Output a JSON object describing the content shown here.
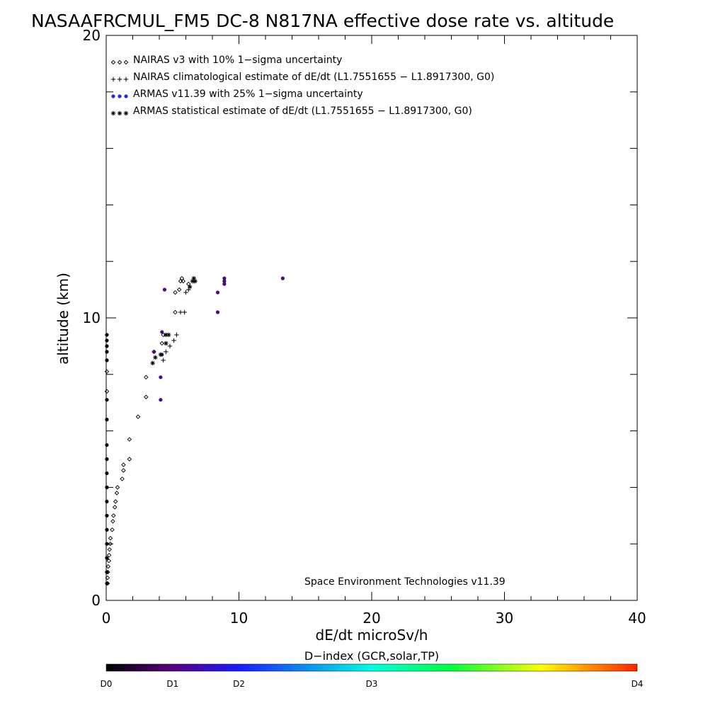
{
  "chart_data": {
    "type": "scatter",
    "title": "NASAAFRCMUL_FM5 DC-8   N817NA effective dose rate vs. altitude",
    "xlabel": "dE/dt microSv/h",
    "ylabel": "altitude (km)",
    "xlim": [
      0,
      40
    ],
    "ylim": [
      0,
      20
    ],
    "x_ticks": [
      0,
      10,
      20,
      30,
      40
    ],
    "x_tick_labels": [
      "0",
      "10",
      "20",
      "30",
      "40"
    ],
    "y_ticks": [
      0,
      10,
      20
    ],
    "y_tick_labels": [
      "0",
      "10",
      "20"
    ],
    "grid": false,
    "legend_position": "top-left",
    "annotation": "Space Environment Technologies v11.39",
    "colorbar": {
      "title": "D−index (GCR,solar,TP)",
      "labels": [
        "D0",
        "D1",
        "D2",
        "D3",
        "D4"
      ],
      "label_values": [
        0,
        0.125,
        0.25,
        0.5,
        1.0
      ]
    },
    "series": [
      {
        "name": "NAIRAS v3 with 10% 1−sigma uncertainty",
        "marker": "diamond",
        "color": "#000000",
        "points": [
          [
            0.05,
            7.4
          ],
          [
            0.05,
            8.1
          ],
          [
            0.1,
            0.6
          ],
          [
            0.1,
            0.8
          ],
          [
            0.12,
            1.0
          ],
          [
            0.15,
            1.2
          ],
          [
            0.2,
            1.4
          ],
          [
            0.22,
            1.6
          ],
          [
            0.25,
            1.8
          ],
          [
            0.3,
            2.0
          ],
          [
            0.32,
            2.2
          ],
          [
            0.45,
            2.5
          ],
          [
            0.5,
            2.8
          ],
          [
            0.55,
            3.0
          ],
          [
            0.65,
            3.3
          ],
          [
            0.7,
            3.5
          ],
          [
            0.8,
            3.8
          ],
          [
            0.85,
            4.0
          ],
          [
            1.2,
            4.3
          ],
          [
            1.3,
            4.6
          ],
          [
            1.3,
            4.8
          ],
          [
            1.75,
            5.0
          ],
          [
            1.75,
            5.7
          ],
          [
            2.4,
            6.5
          ],
          [
            3.0,
            7.2
          ],
          [
            3.0,
            7.9
          ],
          [
            3.6,
            8.8
          ],
          [
            4.2,
            9.1
          ],
          [
            4.3,
            9.4
          ],
          [
            5.2,
            10.2
          ],
          [
            5.2,
            10.9
          ],
          [
            5.5,
            11.0
          ],
          [
            5.6,
            11.3
          ],
          [
            5.7,
            11.4
          ],
          [
            5.8,
            11.3
          ],
          [
            6.2,
            11.2
          ]
        ]
      },
      {
        "name": "NAIRAS climatological estimate of dE/dt (L1.7551655 − L1.8917300, G0)",
        "marker": "plus",
        "color": "#000000",
        "points": [
          [
            4.3,
            8.5
          ],
          [
            4.5,
            8.8
          ],
          [
            4.8,
            9.0
          ],
          [
            5.1,
            9.2
          ],
          [
            5.3,
            9.4
          ],
          [
            5.6,
            10.2
          ],
          [
            5.9,
            10.2
          ],
          [
            6.0,
            10.9
          ],
          [
            6.2,
            11.0
          ],
          [
            6.6,
            11.3
          ]
        ]
      },
      {
        "name": "ARMAS v11.39 with 25% 1−sigma uncertainty",
        "marker": "dot",
        "color": "#2a2ad0",
        "points": [
          [
            0.05,
            0.6
          ],
          [
            0.05,
            1.0
          ],
          [
            0.05,
            1.5
          ],
          [
            0.05,
            2.0
          ],
          [
            0.05,
            2.5
          ],
          [
            0.05,
            3.0
          ],
          [
            0.05,
            3.5
          ],
          [
            0.05,
            4.0
          ],
          [
            0.05,
            4.5
          ],
          [
            0.05,
            5.0
          ],
          [
            0.05,
            5.5
          ],
          [
            0.05,
            6.4
          ],
          [
            0.05,
            7.1
          ],
          [
            0.05,
            8.5
          ],
          [
            0.05,
            8.8
          ],
          [
            0.05,
            9.0
          ],
          [
            0.05,
            9.2
          ],
          [
            0.05,
            9.4
          ],
          [
            3.6,
            8.8
          ],
          [
            4.1,
            7.1
          ],
          [
            4.1,
            7.9
          ],
          [
            4.2,
            8.7
          ],
          [
            4.2,
            9.5
          ],
          [
            4.4,
            11.0
          ],
          [
            8.4,
            10.2
          ],
          [
            8.4,
            10.9
          ],
          [
            8.9,
            11.2
          ],
          [
            8.9,
            11.3
          ],
          [
            8.9,
            11.4
          ],
          [
            13.3,
            11.4
          ]
        ]
      },
      {
        "name": "ARMAS statistical estimate of dE/dt (L1.7551655 − L1.8917300, G0)",
        "marker": "asterisk",
        "color": "#000000",
        "points": [
          [
            3.5,
            8.4
          ],
          [
            3.7,
            8.6
          ],
          [
            4.1,
            8.7
          ],
          [
            4.5,
            9.1
          ],
          [
            4.5,
            9.4
          ],
          [
            4.7,
            9.4
          ],
          [
            6.3,
            11.1
          ],
          [
            6.5,
            11.3
          ],
          [
            6.6,
            11.4
          ],
          [
            6.7,
            11.3
          ]
        ]
      }
    ]
  }
}
